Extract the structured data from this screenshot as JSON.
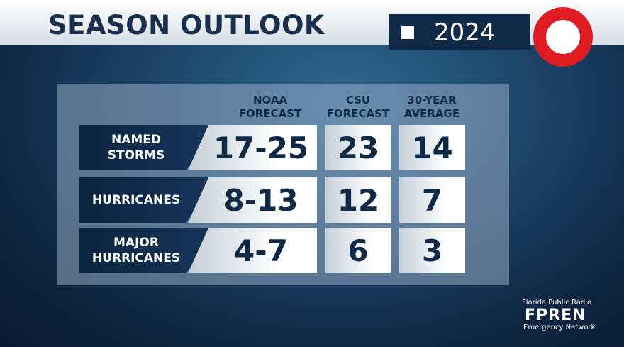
{
  "header": {
    "title": "SEASON OUTLOOK",
    "year": "2024"
  },
  "table": {
    "columns": [
      "NOAA FORECAST",
      "CSU FORECAST",
      "30-YEAR AVERAGE"
    ],
    "rows": [
      {
        "label": "NAMED STORMS",
        "values": [
          "17-25",
          23,
          14
        ]
      },
      {
        "label": "HURRICANES",
        "values": [
          "8-13",
          12,
          7
        ]
      },
      {
        "label": "MAJOR HURRICANES",
        "values": [
          "4-7",
          6,
          3
        ]
      }
    ]
  },
  "footer": {
    "org": "Florida Public Radio",
    "brand": "FPREN",
    "network": "Emergency Network"
  }
}
